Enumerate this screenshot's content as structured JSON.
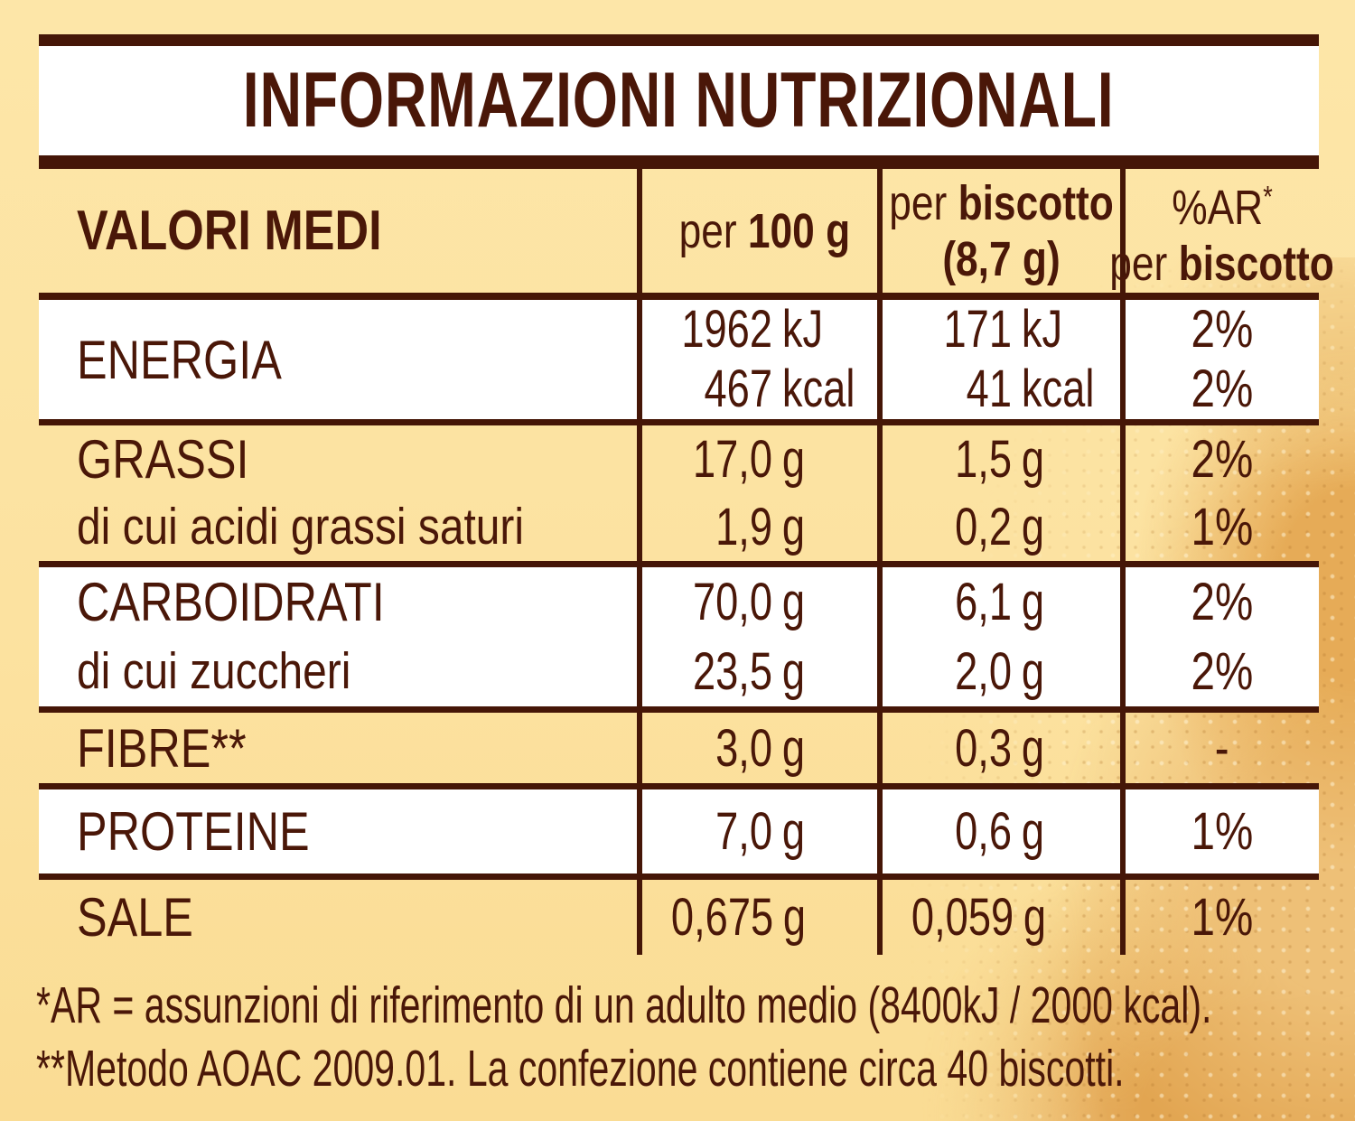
{
  "title": "INFORMAZIONI NUTRIZIONALI",
  "colors": {
    "text_brown": "#4A1708",
    "border_brown": "#451607",
    "background_yellow": "#FCE2A0",
    "row_white": "#FFFFFF",
    "biscuit_tan": "#E6AB57"
  },
  "header": {
    "row_label": "VALORI MEDI",
    "per100": {
      "prefix": "per ",
      "bold": "100 g"
    },
    "per_biscotto": {
      "prefix": "per ",
      "bold": "biscotto",
      "line2": "(8,7 g)"
    },
    "percent_ar": {
      "line1": "%AR",
      "asterisk": "*",
      "line2_prefix": "per ",
      "line2_bold": "biscotto"
    }
  },
  "rows": [
    {
      "label": "ENERGIA",
      "sublabel": "",
      "per100": [
        {
          "num": "1962",
          "unit": "kJ"
        },
        {
          "num": "467",
          "unit": "kcal"
        }
      ],
      "per_biscotto": [
        {
          "num": "171",
          "unit": "kJ"
        },
        {
          "num": "41",
          "unit": "kcal"
        }
      ],
      "ar": [
        "2%",
        "2%"
      ]
    },
    {
      "label": "GRASSI",
      "sublabel": "di cui acidi grassi saturi",
      "per100": [
        {
          "num": "17,0",
          "unit": "g"
        },
        {
          "num": "1,9",
          "unit": "g"
        }
      ],
      "per_biscotto": [
        {
          "num": "1,5",
          "unit": "g"
        },
        {
          "num": "0,2",
          "unit": "g"
        }
      ],
      "ar": [
        "2%",
        "1%"
      ]
    },
    {
      "label": "CARBOIDRATI",
      "sublabel": "di cui zuccheri",
      "per100": [
        {
          "num": "70,0",
          "unit": "g"
        },
        {
          "num": "23,5",
          "unit": "g"
        }
      ],
      "per_biscotto": [
        {
          "num": "6,1",
          "unit": "g"
        },
        {
          "num": "2,0",
          "unit": "g"
        }
      ],
      "ar": [
        "2%",
        "2%"
      ]
    },
    {
      "label": "FIBRE**",
      "sublabel": "",
      "per100": [
        {
          "num": "3,0",
          "unit": "g"
        }
      ],
      "per_biscotto": [
        {
          "num": "0,3",
          "unit": "g"
        }
      ],
      "ar": [
        "-"
      ]
    },
    {
      "label": "PROTEINE",
      "sublabel": "",
      "per100": [
        {
          "num": "7,0",
          "unit": "g"
        }
      ],
      "per_biscotto": [
        {
          "num": "0,6",
          "unit": "g"
        }
      ],
      "ar": [
        "1%"
      ]
    },
    {
      "label": "SALE",
      "sublabel": "",
      "per100": [
        {
          "num": "0,675",
          "unit": "g"
        }
      ],
      "per_biscotto": [
        {
          "num": "0,059",
          "unit": "g"
        }
      ],
      "ar": [
        "1%"
      ]
    }
  ],
  "footnotes": [
    "*AR = assunzioni di riferimento di un adulto medio (8400kJ / 2000 kcal).",
    "**Metodo AOAC 2009.01. La confezione contiene circa 40 biscotti."
  ]
}
